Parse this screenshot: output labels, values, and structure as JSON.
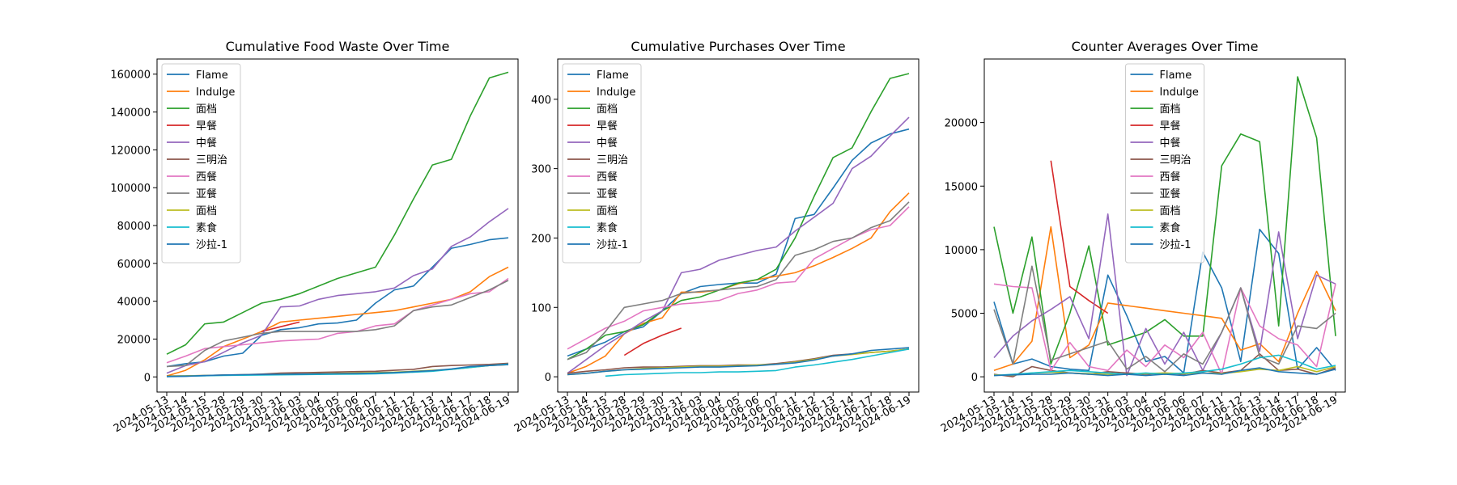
{
  "chart_data": [
    {
      "type": "line",
      "title": "Cumulative Food Waste Over Time",
      "xlabel": "",
      "ylabel": "",
      "ylim": [
        -8000,
        168000
      ],
      "yticks": [
        0,
        20000,
        40000,
        60000,
        80000,
        100000,
        120000,
        140000,
        160000
      ],
      "legend": "upper-left",
      "x": [
        "2024-05-13",
        "2024-05-14",
        "2024-05-15",
        "2024-05-28",
        "2024-05-29",
        "2024-05-30",
        "2024-05-31",
        "2024-06-03",
        "2024-06-04",
        "2024-06-05",
        "2024-06-06",
        "2024-06-07",
        "2024-06-11",
        "2024-06-12",
        "2024-06-13",
        "2024-06-14",
        "2024-06-17",
        "2024-06-18",
        "2024-06-19"
      ],
      "series": [
        {
          "name": "Flame",
          "color": "#1f77b4",
          "values": [
            5500,
            7000,
            8000,
            11000,
            12500,
            22000,
            25000,
            26000,
            28000,
            28500,
            30000,
            39000,
            46000,
            48000,
            58000,
            68000,
            70000,
            72500,
            73500
          ]
        },
        {
          "name": "Indulge",
          "color": "#ff7f0e",
          "values": [
            500,
            3500,
            9000,
            16000,
            20000,
            24000,
            29000,
            30000,
            31000,
            32000,
            33000,
            34000,
            35000,
            37000,
            39000,
            41000,
            45000,
            53000,
            58000
          ]
        },
        {
          "name": "面档",
          "color": "#2ca02c",
          "values": [
            12000,
            17000,
            28000,
            29000,
            34000,
            39000,
            41000,
            44000,
            48000,
            52000,
            55000,
            58000,
            75000,
            94000,
            112000,
            115000,
            138000,
            158000,
            161000
          ]
        },
        {
          "name": "早餐",
          "color": "#d62728",
          "values": [
            null,
            null,
            null,
            null,
            null,
            24000,
            26500,
            29000,
            null,
            null,
            null,
            null,
            null,
            null,
            null,
            null,
            null,
            null,
            null
          ]
        },
        {
          "name": "中餐",
          "color": "#9467bd",
          "values": [
            2000,
            6000,
            8000,
            13000,
            18000,
            22000,
            37000,
            37500,
            41000,
            43000,
            44000,
            45000,
            47000,
            53500,
            57000,
            69000,
            74000,
            82000,
            89000
          ]
        },
        {
          "name": "三明治",
          "color": "#8c564b",
          "values": [
            500,
            600,
            700,
            1000,
            1200,
            1500,
            2000,
            2200,
            2400,
            2600,
            2800,
            3000,
            3500,
            4000,
            5500,
            6000,
            6300,
            6600,
            7200
          ]
        },
        {
          "name": "西餐",
          "color": "#e377c2",
          "values": [
            7500,
            11000,
            15000,
            16000,
            17000,
            18000,
            19000,
            19500,
            20000,
            23000,
            24000,
            27000,
            28000,
            35000,
            38000,
            41000,
            44000,
            45000,
            52000
          ]
        },
        {
          "name": "亚餐",
          "color": "#7f7f7f",
          "values": [
            5500,
            6000,
            14000,
            19000,
            21000,
            23000,
            24000,
            24000,
            24000,
            24000,
            24000,
            25000,
            27000,
            35000,
            37000,
            38000,
            42000,
            46000,
            51000
          ]
        },
        {
          "name": "面档",
          "color": "#bcbd22",
          "values": [
            300,
            500,
            700,
            900,
            1100,
            1200,
            1400,
            1500,
            1700,
            1900,
            2100,
            2300,
            2500,
            3000,
            3500,
            4000,
            5000,
            6000,
            6500
          ]
        },
        {
          "name": "素食",
          "color": "#17becf",
          "values": [
            200,
            400,
            600,
            800,
            900,
            1000,
            1100,
            1200,
            1300,
            1400,
            1500,
            1600,
            2000,
            2500,
            3000,
            4000,
            5000,
            6000,
            6800
          ]
        },
        {
          "name": "沙拉-1",
          "color": "#1f77b4",
          "values": [
            100,
            300,
            700,
            1000,
            1200,
            1300,
            1400,
            1500,
            1600,
            1700,
            1800,
            2000,
            2300,
            2800,
            3300,
            4200,
            5500,
            6000,
            6500
          ]
        }
      ]
    },
    {
      "type": "line",
      "title": "Cumulative Purchases Over Time",
      "xlabel": "",
      "ylabel": "",
      "ylim": [
        -22,
        458
      ],
      "yticks": [
        0,
        100,
        200,
        300,
        400
      ],
      "legend": "upper-left",
      "x": [
        "2024-05-13",
        "2024-05-14",
        "2024-05-15",
        "2024-05-28",
        "2024-05-29",
        "2024-05-30",
        "2024-05-31",
        "2024-06-03",
        "2024-06-04",
        "2024-06-05",
        "2024-06-06",
        "2024-06-07",
        "2024-06-11",
        "2024-06-12",
        "2024-06-13",
        "2024-06-14",
        "2024-06-17",
        "2024-06-18",
        "2024-06-19"
      ],
      "series": [
        {
          "name": "Flame",
          "color": "#1f77b4",
          "values": [
            30,
            40,
            50,
            65,
            72,
            95,
            120,
            130,
            133,
            135,
            135,
            148,
            228,
            234,
            272,
            312,
            337,
            350,
            357
          ]
        },
        {
          "name": "Indulge",
          "color": "#ff7f0e",
          "values": [
            5,
            15,
            30,
            62,
            77,
            85,
            122,
            122,
            125,
            134,
            140,
            145,
            150,
            160,
            172,
            185,
            200,
            238,
            265
          ]
        },
        {
          "name": "面档",
          "color": "#2ca02c",
          "values": [
            25,
            40,
            60,
            65,
            75,
            95,
            110,
            115,
            125,
            135,
            140,
            155,
            200,
            260,
            316,
            330,
            382,
            430,
            437
          ]
        },
        {
          "name": "早餐",
          "color": "#d62728",
          "values": [
            null,
            null,
            null,
            31,
            48,
            60,
            70,
            null,
            null,
            null,
            null,
            null,
            null,
            null,
            null,
            null,
            null,
            null,
            null
          ]
        },
        {
          "name": "中餐",
          "color": "#9467bd",
          "values": [
            5,
            25,
            45,
            62,
            80,
            95,
            150,
            155,
            168,
            175,
            182,
            187,
            210,
            230,
            250,
            300,
            318,
            347,
            374
          ]
        },
        {
          "name": "三明治",
          "color": "#8c564b",
          "values": [
            5,
            8,
            10,
            13,
            14,
            14,
            15,
            16,
            16,
            17,
            17,
            19,
            22,
            26,
            31,
            33,
            35,
            37,
            40
          ]
        },
        {
          "name": "西餐",
          "color": "#e377c2",
          "values": [
            40,
            55,
            70,
            80,
            95,
            100,
            105,
            107,
            110,
            120,
            125,
            135,
            137,
            170,
            185,
            200,
            212,
            218,
            245
          ]
        },
        {
          "name": "亚餐",
          "color": "#7f7f7f",
          "values": [
            25,
            35,
            65,
            100,
            105,
            110,
            120,
            123,
            125,
            128,
            130,
            140,
            175,
            183,
            195,
            200,
            215,
            225,
            252
          ]
        },
        {
          "name": "面档",
          "color": "#bcbd22",
          "values": [
            3,
            5,
            8,
            10,
            12,
            13,
            14,
            15,
            15,
            16,
            17,
            18,
            21,
            25,
            30,
            32,
            35,
            37,
            40
          ]
        },
        {
          "name": "素食",
          "color": "#17becf",
          "values": [
            null,
            null,
            1,
            3,
            4,
            5,
            6,
            6,
            7,
            7,
            8,
            9,
            14,
            17,
            21,
            25,
            30,
            35,
            40
          ]
        },
        {
          "name": "沙拉-1",
          "color": "#1f77b4",
          "values": [
            3,
            5,
            8,
            10,
            11,
            12,
            13,
            14,
            14,
            15,
            16,
            18,
            20,
            24,
            30,
            33,
            38,
            40,
            42
          ]
        }
      ]
    },
    {
      "type": "line",
      "title": "Counter Averages Over Time",
      "xlabel": "",
      "ylabel": "",
      "ylim": [
        -1200,
        25000
      ],
      "yticks": [
        0,
        5000,
        10000,
        15000,
        20000
      ],
      "legend": "upper-center",
      "x": [
        "2024-05-13",
        "2024-05-14",
        "2024-05-15",
        "2024-05-28",
        "2024-05-29",
        "2024-05-30",
        "2024-05-31",
        "2024-06-03",
        "2024-06-04",
        "2024-06-05",
        "2024-06-06",
        "2024-06-07",
        "2024-06-11",
        "2024-06-12",
        "2024-06-13",
        "2024-06-14",
        "2024-06-17",
        "2024-06-18",
        "2024-06-19"
      ],
      "series": [
        {
          "name": "Flame",
          "color": "#1f77b4",
          "values": [
            5900,
            1000,
            1400,
            800,
            600,
            500,
            8000,
            4800,
            1200,
            1600,
            300,
            9800,
            7000,
            1200,
            11600,
            9700,
            600,
            2300,
            500
          ]
        },
        {
          "name": "Indulge",
          "color": "#ff7f0e",
          "values": [
            500,
            1000,
            2800,
            11800,
            1500,
            2500,
            5800,
            5600,
            5400,
            5200,
            5000,
            4800,
            4600,
            2100,
            2600,
            1200,
            5000,
            8300,
            5200
          ]
        },
        {
          "name": "面档",
          "color": "#2ca02c",
          "values": [
            11800,
            5000,
            11000,
            1000,
            5000,
            10300,
            2500,
            3000,
            3500,
            4500,
            3200,
            3200,
            16600,
            19100,
            18500,
            4000,
            23600,
            18800,
            3200
          ]
        },
        {
          "name": "早餐",
          "color": "#d62728",
          "values": [
            null,
            null,
            null,
            17000,
            7100,
            6000,
            5000,
            null,
            null,
            null,
            null,
            null,
            null,
            null,
            null,
            null,
            null,
            null,
            null
          ]
        },
        {
          "name": "中餐",
          "color": "#9467bd",
          "values": [
            1500,
            3200,
            4400,
            5300,
            6300,
            3000,
            12800,
            100,
            3800,
            1000,
            3500,
            500,
            3500,
            7000,
            2000,
            11400,
            3000,
            8000,
            7300
          ]
        },
        {
          "name": "三明治",
          "color": "#8c564b",
          "values": [
            200,
            0,
            800,
            500,
            300,
            200,
            400,
            300,
            200,
            300,
            200,
            500,
            300,
            500,
            1800,
            500,
            600,
            200,
            700
          ]
        },
        {
          "name": "西餐",
          "color": "#e377c2",
          "values": [
            7300,
            7100,
            7000,
            500,
            2700,
            800,
            500,
            2100,
            800,
            2500,
            1500,
            3500,
            200,
            7000,
            4000,
            3000,
            2500,
            800,
            7300
          ]
        },
        {
          "name": "亚餐",
          "color": "#7f7f7f",
          "values": [
            5300,
            1000,
            8700,
            1300,
            1800,
            2300,
            2800,
            600,
            1600,
            400,
            1800,
            1000,
            3500,
            7000,
            1600,
            1000,
            4000,
            3800,
            5000
          ]
        },
        {
          "name": "面档",
          "color": "#bcbd22",
          "values": [
            150,
            120,
            300,
            350,
            300,
            250,
            200,
            200,
            250,
            300,
            250,
            300,
            250,
            400,
            600,
            500,
            800,
            400,
            800
          ]
        },
        {
          "name": "素食",
          "color": "#17becf",
          "values": [
            100,
            200,
            300,
            400,
            500,
            400,
            300,
            200,
            300,
            200,
            300,
            400,
            600,
            1000,
            1500,
            1700,
            1200,
            600,
            900
          ]
        },
        {
          "name": "沙拉-1",
          "color": "#1f77b4",
          "values": [
            100,
            150,
            200,
            200,
            300,
            200,
            100,
            200,
            100,
            200,
            100,
            300,
            200,
            500,
            700,
            400,
            300,
            200,
            600
          ]
        }
      ]
    }
  ]
}
